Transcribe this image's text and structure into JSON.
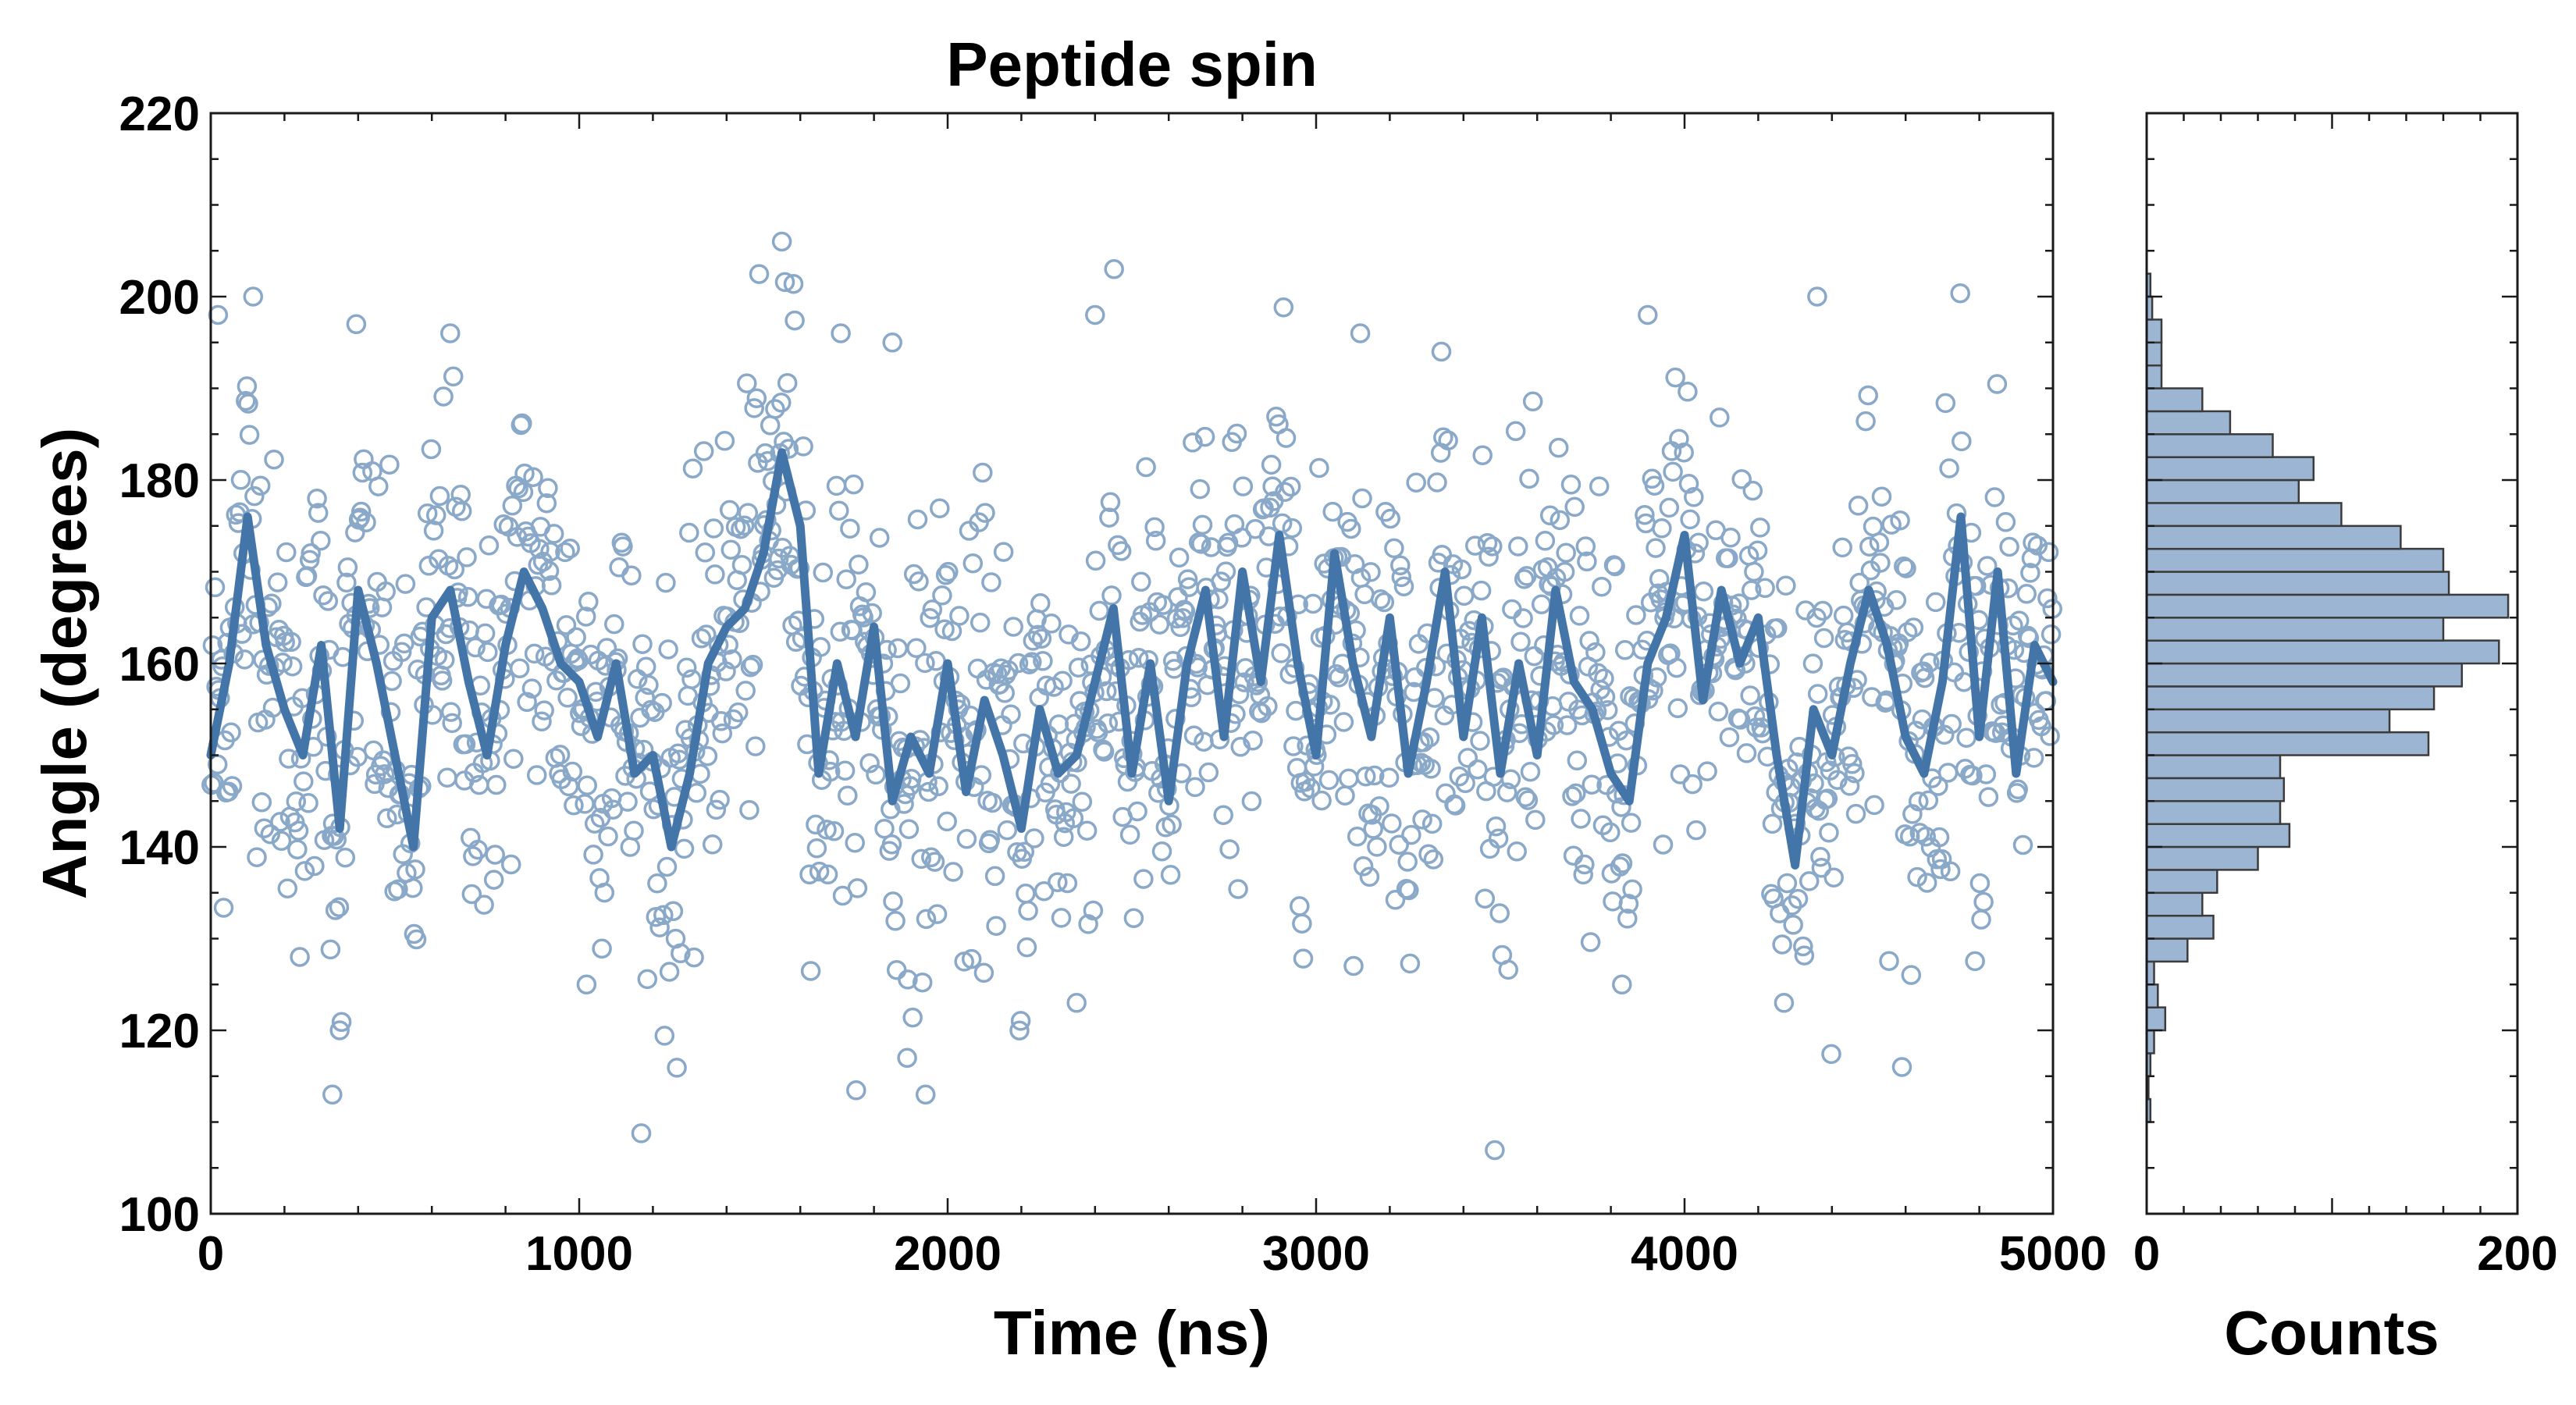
{
  "chart_data": [
    {
      "type": "scatter",
      "title": "Peptide spin",
      "xlabel": "Time (ns)",
      "ylabel": "Angle (degrees)",
      "xlim": [
        0,
        5000
      ],
      "ylim": [
        100,
        220
      ],
      "xticks": [
        0,
        1000,
        2000,
        3000,
        4000,
        5000
      ],
      "yticks": [
        100,
        120,
        140,
        160,
        180,
        200,
        220
      ],
      "series": [
        {
          "name": "raw samples (open circles)",
          "kind": "scatter",
          "n_points": 1500,
          "mean": 158,
          "std": 14,
          "color": "#8aa8c8",
          "sample_points": [
            [
              20,
              198
            ],
            [
              115,
              200
            ],
            [
              395,
              197
            ],
            [
              650,
              196
            ],
            [
              1550,
              206
            ],
            [
              1710,
              196
            ],
            [
              1850,
              195
            ],
            [
              2400,
              198
            ],
            [
              3120,
              196
            ],
            [
              3340,
              194
            ],
            [
              3900,
              198
            ],
            [
              4360,
              200
            ],
            [
              330,
              113
            ],
            [
              1940,
              113
            ],
            [
              4590,
              116
            ],
            [
              1890,
              117
            ],
            [
              350,
              120
            ],
            [
              1020,
              125
            ],
            [
              3830,
              125
            ],
            [
              2350,
              123
            ],
            [
              4270,
              123
            ]
          ]
        },
        {
          "name": "running average (solid line)",
          "kind": "line",
          "color": "#4475a8",
          "x": [
            0,
            50,
            100,
            150,
            200,
            250,
            300,
            350,
            400,
            450,
            500,
            550,
            600,
            650,
            700,
            750,
            800,
            850,
            900,
            950,
            1000,
            1050,
            1100,
            1150,
            1200,
            1250,
            1300,
            1350,
            1400,
            1450,
            1500,
            1550,
            1600,
            1650,
            1700,
            1750,
            1800,
            1850,
            1900,
            1950,
            2000,
            2050,
            2100,
            2150,
            2200,
            2250,
            2300,
            2350,
            2400,
            2450,
            2500,
            2550,
            2600,
            2650,
            2700,
            2750,
            2800,
            2850,
            2900,
            2950,
            3000,
            3050,
            3100,
            3150,
            3200,
            3250,
            3300,
            3350,
            3400,
            3450,
            3500,
            3550,
            3600,
            3650,
            3700,
            3750,
            3800,
            3850,
            3900,
            3950,
            4000,
            4050,
            4100,
            4150,
            4200,
            4250,
            4300,
            4350,
            4400,
            4450,
            4500,
            4550,
            4600,
            4650,
            4700,
            4750,
            4800,
            4850,
            4900,
            4950,
            5000
          ],
          "y": [
            150,
            160,
            176,
            162,
            155,
            150,
            162,
            142,
            168,
            160,
            150,
            140,
            165,
            168,
            158,
            150,
            162,
            170,
            166,
            160,
            158,
            152,
            160,
            148,
            150,
            140,
            148,
            160,
            164,
            166,
            172,
            183,
            175,
            148,
            160,
            152,
            164,
            145,
            152,
            148,
            160,
            146,
            156,
            150,
            142,
            155,
            148,
            150,
            158,
            166,
            148,
            160,
            145,
            160,
            168,
            152,
            170,
            158,
            174,
            160,
            150,
            172,
            160,
            152,
            165,
            148,
            158,
            170,
            152,
            165,
            148,
            160,
            150,
            168,
            158,
            155,
            148,
            145,
            160,
            165,
            174,
            156,
            168,
            160,
            165,
            150,
            138,
            155,
            150,
            160,
            168,
            162,
            152,
            148,
            158,
            176,
            152,
            170,
            148,
            162,
            158
          ]
        }
      ]
    },
    {
      "type": "bar",
      "orientation": "horizontal",
      "title": "",
      "xlabel": "Counts",
      "ylabel": "",
      "xlim": [
        0,
        200
      ],
      "ylim": [
        100,
        220
      ],
      "xticks": [
        0,
        200
      ],
      "bin_width": 2.5,
      "color": "#9bb5d2",
      "bins": [
        [
          110,
          112.5,
          2
        ],
        [
          112.5,
          115,
          1
        ],
        [
          115,
          117.5,
          2
        ],
        [
          117.5,
          120,
          4
        ],
        [
          120,
          122.5,
          10
        ],
        [
          122.5,
          125,
          6
        ],
        [
          125,
          127.5,
          4
        ],
        [
          127.5,
          130,
          22
        ],
        [
          130,
          132.5,
          36
        ],
        [
          132.5,
          135,
          30
        ],
        [
          135,
          137.5,
          38
        ],
        [
          137.5,
          140,
          60
        ],
        [
          140,
          142.5,
          77
        ],
        [
          142.5,
          145,
          72
        ],
        [
          145,
          147.5,
          74
        ],
        [
          147.5,
          150,
          72
        ],
        [
          150,
          152.5,
          152
        ],
        [
          152.5,
          155,
          131
        ],
        [
          155,
          157.5,
          155
        ],
        [
          157.5,
          160,
          170
        ],
        [
          160,
          162.5,
          190
        ],
        [
          162.5,
          165,
          160
        ],
        [
          165,
          167.5,
          195
        ],
        [
          167.5,
          170,
          163
        ],
        [
          170,
          172.5,
          160
        ],
        [
          172.5,
          175,
          137
        ],
        [
          175,
          177.5,
          105
        ],
        [
          177.5,
          180,
          82
        ],
        [
          180,
          182.5,
          90
        ],
        [
          182.5,
          185,
          68
        ],
        [
          185,
          187.5,
          45
        ],
        [
          187.5,
          190,
          30
        ],
        [
          190,
          192.5,
          8
        ],
        [
          192.5,
          195,
          8
        ],
        [
          195,
          197.5,
          8
        ],
        [
          197.5,
          200,
          3
        ],
        [
          200,
          202.5,
          2
        ]
      ]
    }
  ]
}
